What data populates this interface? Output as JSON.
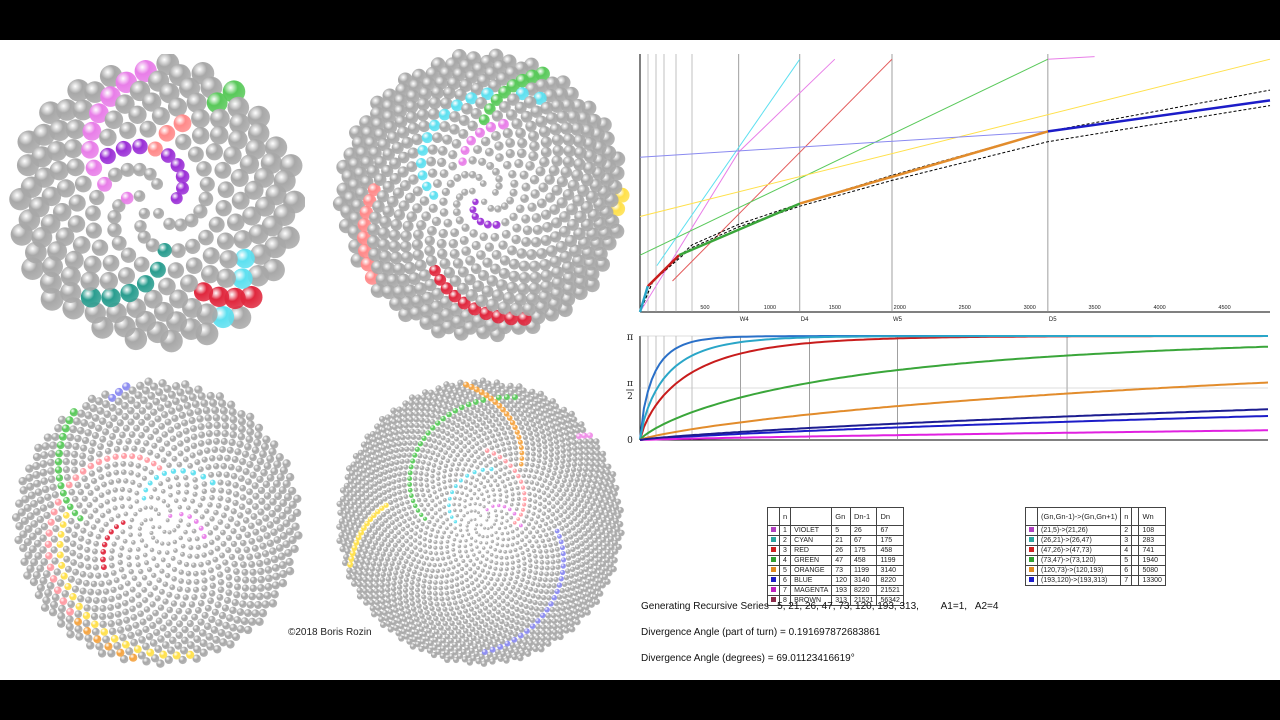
{
  "copyright": "©2018  Boris Rozin",
  "generating_series_text": "Generating Recursive Series   5, 21, 26, 47, 73, 120, 193, 313,        A1=1,   A2=4",
  "divergence_turn_text": "Divergence Angle (part of turn) = 0.191697872683861",
  "divergence_degrees_text": "Divergence Angle (degrees) = 69.01123416619°",
  "angle_ratio": 0.191697872683861,
  "spirals": [
    {
      "id": "tl",
      "count": 200,
      "ball_min": 5.0,
      "ball_max": 11.5,
      "highlights": [
        {
          "color": "#9b30d6",
          "start": 0,
          "step": 5,
          "count": 10
        },
        {
          "color": "#e87ee8",
          "start": 8,
          "step": 21,
          "count": 9
        },
        {
          "color": "#ff8a8a",
          "start": 30,
          "step": 21,
          "count": 3
        },
        {
          "color": "#2a9d8f",
          "start": 22,
          "step": 21,
          "count": 6
        },
        {
          "color": "#5de0f0",
          "start": 110,
          "step": 21,
          "count": 4
        },
        {
          "color": "#59c95a",
          "start": 140,
          "step": 47,
          "count": 2
        },
        {
          "color": "#e0283e",
          "start": 100,
          "step": 26,
          "count": 4
        }
      ]
    },
    {
      "id": "tr",
      "count": 520,
      "ball_min": 3.0,
      "ball_max": 7.5,
      "highlights": [
        {
          "color": "#9b30d6",
          "start": 2,
          "step": 5,
          "count": 6
        },
        {
          "color": "#e87ee8",
          "start": 40,
          "step": 21,
          "count": 6
        },
        {
          "color": "#5de0f0",
          "start": 60,
          "step": 21,
          "count": 14
        },
        {
          "color": "#59c95a",
          "start": 150,
          "step": 47,
          "count": 8
        },
        {
          "color": "#ff8a8a",
          "start": 300,
          "step": 26,
          "count": 8
        },
        {
          "color": "#e0283e",
          "start": 200,
          "step": 26,
          "count": 10
        },
        {
          "color": "#ffe04a",
          "start": 480,
          "step": 26,
          "count": 2
        }
      ]
    },
    {
      "id": "bl",
      "count": 1000,
      "ball_min": 1.8,
      "ball_max": 4.2,
      "highlights": [
        {
          "color": "#e87ee8",
          "start": 10,
          "step": 21,
          "count": 6
        },
        {
          "color": "#5de0f0",
          "start": 40,
          "step": 21,
          "count": 10
        },
        {
          "color": "#e0283e",
          "start": 60,
          "step": 26,
          "count": 8
        },
        {
          "color": "#ff9aa2",
          "start": 150,
          "step": 26,
          "count": 28
        },
        {
          "color": "#59c95a",
          "start": 300,
          "step": 47,
          "count": 16
        },
        {
          "color": "#ffe04a",
          "start": 420,
          "step": 26,
          "count": 20
        },
        {
          "color": "#f4a340",
          "start": 800,
          "step": 26,
          "count": 6
        },
        {
          "color": "#8a8af0",
          "start": 880,
          "step": 47,
          "count": 3
        }
      ]
    },
    {
      "id": "br",
      "count": 2000,
      "ball_min": 1.4,
      "ball_max": 3.2,
      "highlights": [
        {
          "color": "#e87ee8",
          "start": 20,
          "step": 21,
          "count": 8
        },
        {
          "color": "#5de0f0",
          "start": 60,
          "step": 21,
          "count": 12
        },
        {
          "color": "#ff9aa2",
          "start": 120,
          "step": 26,
          "count": 16
        },
        {
          "color": "#59c95a",
          "start": 300,
          "step": 47,
          "count": 30
        },
        {
          "color": "#8a8af0",
          "start": 600,
          "step": 47,
          "count": 24
        },
        {
          "color": "#f4a340",
          "start": 500,
          "step": 73,
          "count": 20
        },
        {
          "color": "#ffe04a",
          "start": 900,
          "step": 73,
          "count": 14
        },
        {
          "color": "#f08ee8",
          "start": 1700,
          "step": 120,
          "count": 3
        }
      ]
    }
  ],
  "chart_top": {
    "type": "line",
    "x_ticks": [
      "500",
      "1000",
      "1500",
      "2000",
      "2500",
      "3000",
      "3500",
      "4000",
      "4500"
    ],
    "markers": [
      "W4",
      "D4",
      "W5",
      "D5"
    ],
    "marker_values": [
      760,
      1230,
      1940,
      3140
    ],
    "xlim": [
      0,
      4850
    ],
    "ylim": [
      0,
      1
    ],
    "series": [
      {
        "color": "#e87ee8",
        "x": [
          0,
          760,
          1500
        ],
        "y": [
          0,
          0.62,
          0.98
        ]
      },
      {
        "color": "#5de0f0",
        "x": [
          130,
          1230
        ],
        "y": [
          0.18,
          0.98
        ]
      },
      {
        "color": "#e35a5a",
        "x": [
          250,
          1940
        ],
        "y": [
          0.12,
          0.98
        ]
      },
      {
        "color": "#59c95a",
        "x": [
          0,
          3140
        ],
        "y": [
          0.22,
          0.98
        ]
      },
      {
        "color": "#ffe04a",
        "x": [
          0,
          4850
        ],
        "y": [
          0.37,
          0.98
        ]
      },
      {
        "color": "#8a8af0",
        "x": [
          0,
          3140
        ],
        "y": [
          0.6,
          0.7
        ]
      },
      {
        "color": "#e87ee8",
        "x": [
          3140,
          3500
        ],
        "y": [
          0.98,
          0.99
        ]
      },
      {
        "color": "#000000",
        "dash": true,
        "x": [
          0,
          100,
          400,
          760,
          1230,
          1940,
          3140,
          4850
        ],
        "y": [
          0,
          0.12,
          0.26,
          0.34,
          0.42,
          0.53,
          0.7,
          0.86
        ]
      },
      {
        "color": "#000000",
        "dash": true,
        "x": [
          0,
          100,
          400,
          760,
          1230,
          1940,
          3140,
          4850
        ],
        "y": [
          0,
          0.12,
          0.25,
          0.33,
          0.41,
          0.51,
          0.66,
          0.8
        ]
      },
      {
        "color": "#1c1cc8",
        "x": [
          3140,
          4850
        ],
        "y": [
          0.7,
          0.82
        ],
        "width": 2.5
      },
      {
        "color": "#e28c2c",
        "x": [
          1230,
          3140
        ],
        "y": [
          0.42,
          0.7
        ],
        "width": 2.5
      },
      {
        "color": "#3aa63a",
        "x": [
          300,
          1230
        ],
        "y": [
          0.22,
          0.42
        ],
        "width": 2.5
      },
      {
        "color": "#c81c1c",
        "x": [
          60,
          300
        ],
        "y": [
          0.1,
          0.22
        ],
        "width": 2.5
      },
      {
        "color": "#2aa6c8",
        "x": [
          0,
          60
        ],
        "y": [
          0,
          0.1
        ],
        "width": 2.5
      }
    ]
  },
  "chart_bottom": {
    "type": "line",
    "y_ticks": [
      "π",
      "π/2",
      "0"
    ],
    "xlim": [
      0,
      1
    ],
    "ylim": [
      0,
      3.1416
    ],
    "series": [
      {
        "color": "#2a70c8",
        "rate": 60
      },
      {
        "color": "#c81c1c",
        "rate": 22
      },
      {
        "color": "#2aa6c8",
        "rate": 35
      },
      {
        "color": "#3aa63a",
        "rate": 6.5
      },
      {
        "color": "#e28c2c",
        "rate": 2.3
      },
      {
        "color": "#1c1cc8",
        "rate": 0.75
      },
      {
        "color": "#e020e0",
        "rate": 0.28
      },
      {
        "color": "#1c1c90",
        "rate": 1.0
      }
    ]
  },
  "table1": {
    "headers": [
      "",
      "n",
      "",
      "Gn",
      "Dn-1",
      "Dn"
    ],
    "rows": [
      {
        "color": "#b040c0",
        "n": "1",
        "name": "VIOLET",
        "gn": "5",
        "dn1": "26",
        "dn": "67"
      },
      {
        "color": "#2aa6a0",
        "n": "2",
        "name": "CYAN",
        "gn": "21",
        "dn1": "67",
        "dn": "175"
      },
      {
        "color": "#d02020",
        "n": "3",
        "name": "RED",
        "gn": "26",
        "dn1": "175",
        "dn": "458"
      },
      {
        "color": "#30a030",
        "n": "4",
        "name": "GREEN",
        "gn": "47",
        "dn1": "458",
        "dn": "1199"
      },
      {
        "color": "#e08a20",
        "n": "5",
        "name": "ORANGE",
        "gn": "73",
        "dn1": "1199",
        "dn": "3140"
      },
      {
        "color": "#1c1cc8",
        "n": "6",
        "name": "BLUE",
        "gn": "120",
        "dn1": "3140",
        "dn": "8220"
      },
      {
        "color": "#c020c0",
        "n": "7",
        "name": "MAGENTA",
        "gn": "193",
        "dn1": "8220",
        "dn": "21521"
      },
      {
        "color": "#8a2a4a",
        "n": "8",
        "name": "BROWN",
        "gn": "313",
        "dn1": "21521",
        "dn": "56342"
      }
    ]
  },
  "table2": {
    "headers": [
      "",
      "(Gn,Gn-1)->(Gn,Gn+1)",
      "n",
      "",
      "Wn"
    ],
    "rows": [
      {
        "color": "#b040c0",
        "pair": "(21,5)->(21,26)",
        "n": "2",
        "wn": "108"
      },
      {
        "color": "#2aa6a0",
        "pair": "(26,21)->(26,47)",
        "n": "3",
        "wn": "283"
      },
      {
        "color": "#d02020",
        "pair": "(47,26)->(47,73)",
        "n": "4",
        "wn": "741"
      },
      {
        "color": "#30a030",
        "pair": "(73,47)->(73,120)",
        "n": "5",
        "wn": "1940"
      },
      {
        "color": "#e08a20",
        "pair": "(120,73)->(120,193)",
        "n": "6",
        "wn": "5080"
      },
      {
        "color": "#1c1cc8",
        "pair": "(193,120)->(193,313)",
        "n": "7",
        "wn": "13300"
      }
    ]
  }
}
